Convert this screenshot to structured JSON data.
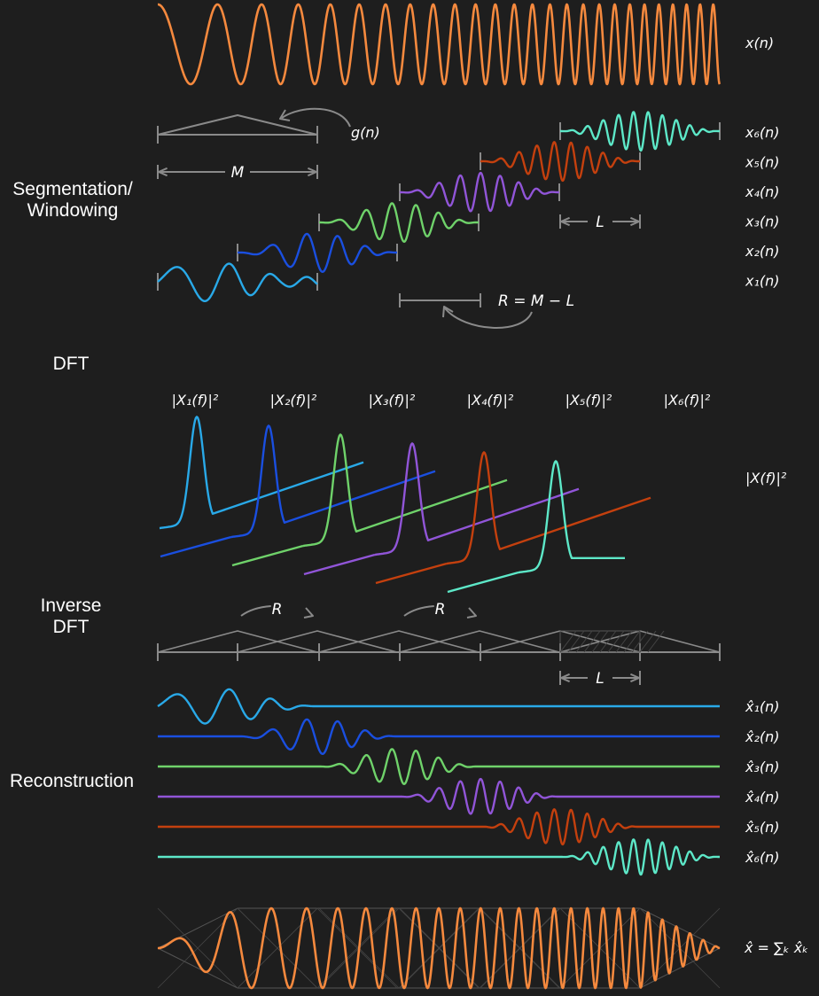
{
  "sections": {
    "segmentation": "Segmentation/\nWindowing",
    "dft": "DFT",
    "inverse": "Inverse\nDFT",
    "reconstruction": "Reconstruction"
  },
  "labels": {
    "input": "x(n)",
    "window": "g(n)",
    "window_length": "M",
    "hop": "L",
    "overlap": "R = M − L",
    "overlap_short": "R",
    "spectrum_total": "|X(f)|²",
    "output_sum": "x̂ = ∑ₖ x̂ₖ"
  },
  "segments": [
    {
      "label": "x₁(n)",
      "spectrum_label": "|X₁(f)|²",
      "recon_label": "x̂₁(n)",
      "color": "#29a9e8"
    },
    {
      "label": "x₂(n)",
      "spectrum_label": "|X₂(f)|²",
      "recon_label": "x̂₂(n)",
      "color": "#1a4fe0"
    },
    {
      "label": "x₃(n)",
      "spectrum_label": "|X₃(f)|²",
      "recon_label": "x̂₃(n)",
      "color": "#6fd26a"
    },
    {
      "label": "x₄(n)",
      "spectrum_label": "|X₄(f)|²",
      "recon_label": "x̂₄(n)",
      "color": "#9155d8"
    },
    {
      "label": "x₅(n)",
      "spectrum_label": "|X₅(f)|²",
      "recon_label": "x̂₅(n)",
      "color": "#c4400e"
    },
    {
      "label": "x₆(n)",
      "spectrum_label": "|X₆(f)|²",
      "recon_label": "x̂₆(n)",
      "color": "#5de8c8"
    }
  ],
  "colors": {
    "signal": "#f5893e",
    "guide": "#8a8a8a",
    "background": "#1e1e1e"
  }
}
